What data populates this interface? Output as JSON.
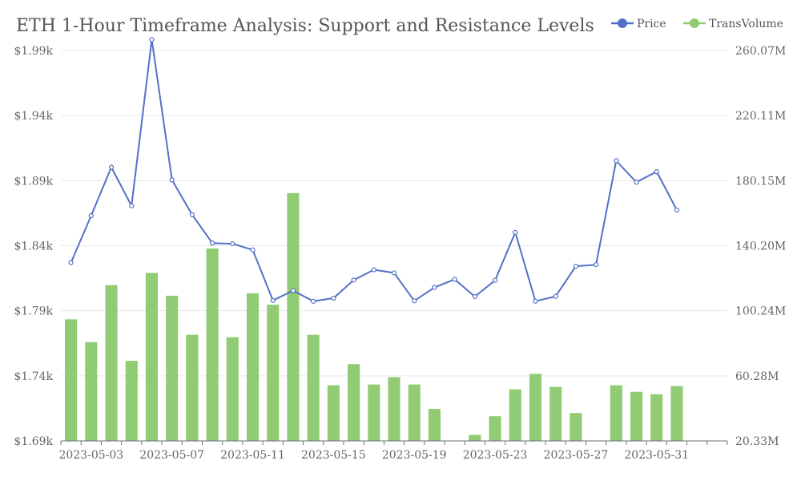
{
  "chart_data": {
    "type": "bar+line",
    "title": "ETH 1-Hour Timeframe Analysis: Support and Resistance Levels",
    "legend": [
      "Price",
      "TransVolume"
    ],
    "legend_position": "top-right",
    "colors": {
      "Price": "#5470c6",
      "TransVolume": "#91cc75"
    },
    "x": [
      "2023-05-02",
      "2023-05-03",
      "2023-05-04",
      "2023-05-05",
      "2023-05-06",
      "2023-05-07",
      "2023-05-08",
      "2023-05-09",
      "2023-05-10",
      "2023-05-11",
      "2023-05-12",
      "2023-05-13",
      "2023-05-14",
      "2023-05-15",
      "2023-05-16",
      "2023-05-17",
      "2023-05-18",
      "2023-05-19",
      "2023-05-20",
      "2023-05-21",
      "2023-05-22",
      "2023-05-23",
      "2023-05-24",
      "2023-05-25",
      "2023-05-26",
      "2023-05-27",
      "2023-05-28",
      "2023-05-29",
      "2023-05-30",
      "2023-05-31",
      "2023-06-01",
      "2023-06-02",
      "2023-06-03"
    ],
    "x_tick_labels": [
      "2023-05-03",
      "2023-05-07",
      "2023-05-11",
      "2023-05-15",
      "2023-05-19",
      "2023-05-23",
      "2023-05-27",
      "2023-05-31"
    ],
    "series": [
      {
        "name": "Price",
        "type": "line",
        "axis": "left",
        "values": [
          1.827,
          1.8631,
          1.9003,
          1.8706,
          1.9983,
          1.8906,
          1.8638,
          1.842,
          1.8415,
          1.8368,
          1.7979,
          1.8055,
          1.7973,
          1.7997,
          1.8136,
          1.8215,
          1.8191,
          1.7976,
          1.8079,
          1.8142,
          1.8009,
          1.8134,
          1.8502,
          1.7973,
          1.8011,
          1.8242,
          1.8254,
          1.9053,
          1.8888,
          1.8969,
          1.8674,
          null,
          null
        ]
      },
      {
        "name": "TransVolume",
        "type": "bar",
        "axis": "right",
        "values": [
          95.0,
          81.0,
          116.0,
          69.5,
          123.5,
          109.5,
          85.5,
          138.5,
          84.0,
          111.0,
          104.0,
          172.5,
          85.5,
          54.5,
          67.5,
          55.0,
          59.5,
          55.0,
          40.0,
          null,
          24.0,
          35.5,
          52.0,
          61.5,
          53.5,
          37.5,
          null,
          54.5,
          50.5,
          49.0,
          54.0,
          null,
          null
        ]
      }
    ],
    "y_left": {
      "min": 1.69,
      "max": 1.99,
      "ticks": [
        "$1.69k",
        "$1.74k",
        "$1.79k",
        "$1.84k",
        "$1.89k",
        "$1.94k",
        "$1.99k"
      ]
    },
    "y_right": {
      "min": 20.33,
      "max": 260.07,
      "ticks": [
        "20.33M",
        "60.28M",
        "100.24M",
        "140.20M",
        "180.15M",
        "220.11M",
        "260.07M"
      ]
    },
    "grid": true
  }
}
